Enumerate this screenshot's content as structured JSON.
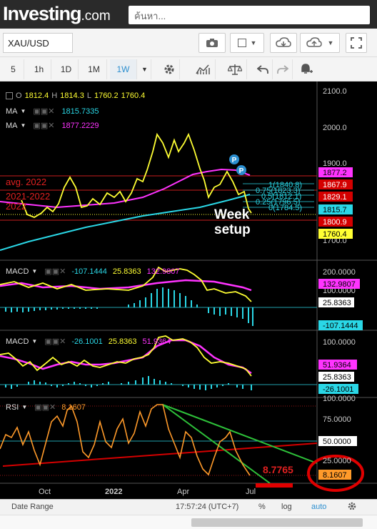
{
  "header": {
    "logo_main": "Investing",
    "logo_suffix": ".com",
    "search_placeholder": "ค้นหา..."
  },
  "toolbar": {
    "symbol": "XAU/USD",
    "timeframes": [
      "5",
      "1h",
      "1D",
      "1M",
      "1W"
    ],
    "active_timeframe": "1W"
  },
  "panes": {
    "price": {
      "ohlc": {
        "o_label": "O",
        "o": "1812.4",
        "h_label": "H",
        "h": "1814.3",
        "l_label": "L",
        "l": "1760.2",
        "c": "1760.4"
      },
      "ma1": {
        "label": "MA",
        "value": "1815.7335"
      },
      "ma2": {
        "label": "MA",
        "value": "1877.2229"
      },
      "axis_ticks": [
        "2100.0",
        "2000.0",
        "1900.0",
        "1700.0"
      ],
      "lines": [
        {
          "label": "avg. 2022",
          "value": "1829.1"
        },
        {
          "label": "2021-2022",
          "value": "1800.9"
        },
        {
          "label": "2022",
          "value": "1867.9"
        }
      ],
      "fib_labels": [
        "1(1840.8)",
        "0.75(1823.3)",
        "0.5(1812.1)",
        "0.25(1796.5)",
        "0(1784.5)"
      ],
      "badges": [
        "1877.2",
        "1867.9",
        "1829.1",
        "1815.7",
        "1800.9",
        "1760.4"
      ],
      "annotation_line1": "Week",
      "annotation_line2": "setup",
      "marker_label": "P"
    },
    "macd1": {
      "label": "MACD",
      "v1": "-107.1444",
      "v2": "25.8363",
      "v3": "132.9807",
      "axis_ticks": [
        "200.0000",
        "100.0000"
      ],
      "badges": [
        "132.9807",
        "25.8363",
        "-107.1444"
      ]
    },
    "macd2": {
      "label": "MACD",
      "v1": "-26.1001",
      "v2": "25.8363",
      "v3": "51.9364",
      "axis_ticks": [
        "100.0000"
      ],
      "badges": [
        "51.9364",
        "25.8363",
        "-26.1001"
      ]
    },
    "rsi": {
      "label": "RSI",
      "value": "8.1607",
      "axis_ticks": [
        "100.0000",
        "75.0000",
        "25.0000"
      ],
      "badges": [
        "50.0000",
        "8.1607"
      ],
      "annotation": "8.7765"
    }
  },
  "x_axis": [
    "Oct",
    "2022",
    "Apr",
    "Jul"
  ],
  "footer": {
    "date_range": "Date Range",
    "time": "17:57:24 (UTC+7)",
    "percent": "%",
    "log": "log",
    "auto": "auto"
  },
  "colors": {
    "price_line": "#ffff33",
    "ma_fast": "#2ad7e6",
    "ma_slow": "#ff33ff",
    "rsi_line": "#ff9a2a",
    "red_line": "#d40000",
    "green_line": "#2ec23a",
    "accent": "#2b8ecf"
  }
}
